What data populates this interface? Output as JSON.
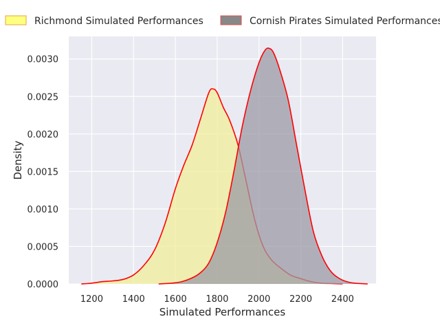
{
  "chart_data": {
    "type": "area",
    "xlabel": "Simulated Performances",
    "ylabel": "Density",
    "xlim": [
      1090,
      2560
    ],
    "ylim": [
      0,
      0.0033
    ],
    "x_ticks": [
      1200,
      1400,
      1600,
      1800,
      2000,
      2200,
      2400
    ],
    "y_ticks": [
      0.0,
      0.0005,
      0.001,
      0.0015,
      0.002,
      0.0025,
      0.003
    ],
    "x_tick_labels": [
      "1200",
      "1400",
      "1600",
      "1800",
      "2000",
      "2200",
      "2400"
    ],
    "y_tick_labels": [
      "0.0000",
      "0.0005",
      "0.0010",
      "0.0015",
      "0.0020",
      "0.0025",
      "0.0030"
    ],
    "grid": true,
    "legend_position": "top",
    "series": [
      {
        "name": "Richmond Simulated Performances",
        "fill": "#f2ee9a",
        "fill_opacity": 0.75,
        "line": "#ff0000",
        "legend_fill": "#ffff80",
        "legend_edge": "#e8a040",
        "x": [
          1150,
          1200,
          1250,
          1300,
          1350,
          1400,
          1450,
          1500,
          1550,
          1600,
          1640,
          1680,
          1720,
          1760,
          1780,
          1800,
          1830,
          1860,
          1900,
          1940,
          1980,
          2020,
          2060,
          2100,
          2150,
          2200,
          2250,
          2300,
          2350,
          2400
        ],
        "y": [
          0.0,
          1e-05,
          3e-05,
          4e-05,
          6e-05,
          0.00012,
          0.00025,
          0.00045,
          0.0008,
          0.00127,
          0.00158,
          0.00185,
          0.0022,
          0.00255,
          0.0026,
          0.00255,
          0.00235,
          0.00218,
          0.00185,
          0.00135,
          0.00085,
          0.0005,
          0.00032,
          0.00022,
          0.00012,
          7e-05,
          3e-05,
          1e-05,
          5e-06,
          0.0
        ]
      },
      {
        "name": "Cornish Pirates Simulated Performances",
        "fill": "#9c9ba5",
        "fill_opacity": 0.75,
        "line": "#ff0000",
        "legend_fill": "#888888",
        "legend_edge": "#e05050",
        "x": [
          1520,
          1580,
          1630,
          1680,
          1720,
          1760,
          1800,
          1840,
          1880,
          1920,
          1960,
          2000,
          2030,
          2050,
          2070,
          2100,
          2140,
          2180,
          2220,
          2260,
          2300,
          2340,
          2380,
          2420,
          2460,
          2520
        ],
        "y": [
          0.0,
          1e-05,
          3e-05,
          8e-05,
          0.00015,
          0.00028,
          0.00055,
          0.00095,
          0.0015,
          0.0021,
          0.00258,
          0.00295,
          0.00312,
          0.00314,
          0.00308,
          0.00285,
          0.00245,
          0.00185,
          0.00125,
          0.0007,
          0.00038,
          0.00018,
          8e-05,
          3e-05,
          1e-05,
          0.0
        ]
      }
    ]
  }
}
